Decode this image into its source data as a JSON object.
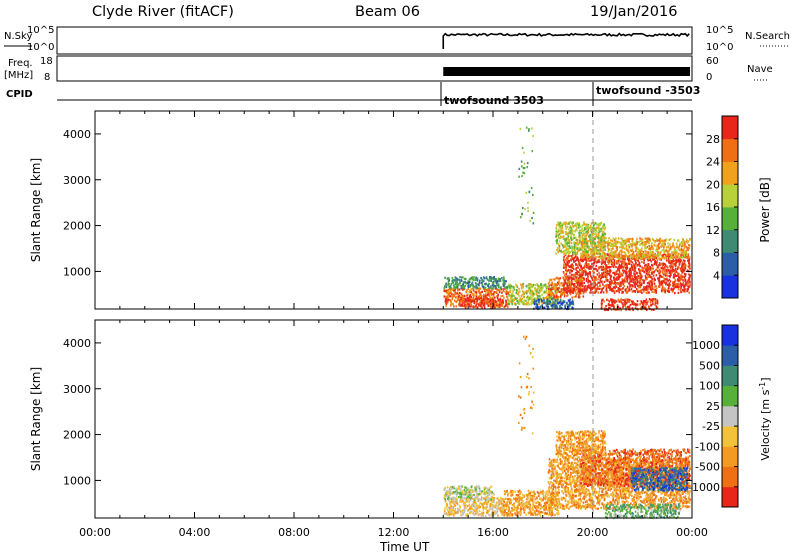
{
  "header": {
    "station": "Clyde River (fitACF)",
    "beam": "Beam 06",
    "date": "19/Jan/2016"
  },
  "nsky_panel": {
    "left_label": "N.Sky",
    "right_label": "N.Search",
    "left_ticks": [
      "10^5",
      "10^0"
    ],
    "right_ticks": [
      "10^5",
      "10^0"
    ]
  },
  "freq_panel": {
    "left_label_line1": "Freq.",
    "left_label_line2": "[MHz]",
    "right_label": "Nave",
    "left_ticks": [
      "18",
      "8"
    ],
    "right_ticks": [
      "60",
      "0"
    ]
  },
  "cpid": {
    "label": "CPID",
    "segments": [
      "twofsound 3503",
      "twofsound -3503"
    ]
  },
  "x_axis": {
    "label": "Time UT",
    "ticks": [
      "00:00",
      "04:00",
      "08:00",
      "12:00",
      "16:00",
      "20:00",
      "00:00"
    ]
  },
  "chart_data": [
    {
      "type": "heatmap",
      "title": "",
      "xlabel": "Time UT",
      "ylabel": "Slant Range [km]",
      "x_unit": "hours UT",
      "xlim": [
        0,
        24
      ],
      "ylim": [
        180,
        4500
      ],
      "y_ticks": [
        1000,
        2000,
        3000,
        4000
      ],
      "y_tick_labels": [
        "1000",
        "2000",
        "3000",
        "4000"
      ],
      "data_start_hour": 14.0,
      "colorbar": {
        "label": "Power [dB]",
        "levels": [
          0,
          4,
          8,
          12,
          16,
          20,
          24,
          28,
          32
        ],
        "tick_labels": [
          "4",
          "8",
          "12",
          "16",
          "20",
          "24",
          "28"
        ],
        "colors": [
          "#1832e0",
          "#2c5ea8",
          "#3e8a72",
          "#56b03a",
          "#b8d03a",
          "#f0a21e",
          "#ef6f14",
          "#e8261a"
        ]
      },
      "regions": [
        {
          "t0": 14.0,
          "t1": 16.6,
          "r0": 250,
          "r1": 650,
          "level": 6
        },
        {
          "t0": 14.0,
          "t1": 16.6,
          "r0": 650,
          "r1": 900,
          "level": 2
        },
        {
          "t0": 14.6,
          "t1": 16.2,
          "r0": 230,
          "r1": 450,
          "level": 7
        },
        {
          "t0": 16.6,
          "t1": 18.6,
          "r0": 300,
          "r1": 750,
          "level": 4
        },
        {
          "t0": 17.6,
          "t1": 19.2,
          "r0": 200,
          "r1": 420,
          "level": 1
        },
        {
          "t0": 18.2,
          "t1": 19.6,
          "r0": 450,
          "r1": 900,
          "level": 6
        },
        {
          "t0": 18.8,
          "t1": 23.9,
          "r0": 550,
          "r1": 1400,
          "level": 7
        },
        {
          "t0": 19.5,
          "t1": 23.9,
          "r0": 1300,
          "r1": 1750,
          "level": 5
        },
        {
          "t0": 20.3,
          "t1": 22.6,
          "r0": 180,
          "r1": 420,
          "level": 7
        },
        {
          "t0": 18.5,
          "t1": 20.5,
          "r0": 1400,
          "r1": 2100,
          "level": 4
        },
        {
          "t0": 17.0,
          "t1": 17.6,
          "r0": 2000,
          "r1": 4200,
          "level": 3
        }
      ]
    },
    {
      "type": "heatmap",
      "title": "",
      "xlabel": "Time UT",
      "ylabel": "Slant Range [km]",
      "x_unit": "hours UT",
      "xlim": [
        0,
        24
      ],
      "ylim": [
        180,
        4500
      ],
      "y_ticks": [
        1000,
        2000,
        3000,
        4000
      ],
      "y_tick_labels": [
        "1000",
        "2000",
        "3000",
        "4000"
      ],
      "data_start_hour": 14.0,
      "colorbar": {
        "label": "Velocity [m s^-1]",
        "levels": [
          -1500,
          -1000,
          -500,
          -100,
          -25,
          25,
          100,
          500,
          1000,
          1500
        ],
        "tick_labels": [
          "-1000",
          "-500",
          "-100",
          "-25",
          "25",
          "100",
          "500",
          "1000"
        ],
        "colors": [
          "#e8261a",
          "#ef6f14",
          "#f29a22",
          "#f2c23a",
          "#c4c4c4",
          "#56b03a",
          "#3e8a72",
          "#2c5ea8",
          "#1832e0"
        ]
      },
      "regions": [
        {
          "t0": 14.0,
          "t1": 16.4,
          "r0": 250,
          "r1": 650,
          "level": 3
        },
        {
          "t0": 14.0,
          "t1": 16.0,
          "r0": 600,
          "r1": 900,
          "level": 4
        },
        {
          "t0": 16.4,
          "t1": 18.6,
          "r0": 250,
          "r1": 800,
          "level": 2
        },
        {
          "t0": 18.2,
          "t1": 23.9,
          "r0": 400,
          "r1": 1500,
          "level": 2
        },
        {
          "t0": 19.5,
          "t1": 23.9,
          "r0": 900,
          "r1": 1700,
          "level": 1
        },
        {
          "t0": 20.5,
          "t1": 23.5,
          "r0": 200,
          "r1": 500,
          "level": 5
        },
        {
          "t0": 21.5,
          "t1": 23.8,
          "r0": 800,
          "r1": 1300,
          "level": 7
        },
        {
          "t0": 18.5,
          "t1": 20.5,
          "r0": 1500,
          "r1": 2100,
          "level": 2
        },
        {
          "t0": 17.0,
          "t1": 17.6,
          "r0": 2000,
          "r1": 4200,
          "level": 2
        }
      ]
    }
  ]
}
